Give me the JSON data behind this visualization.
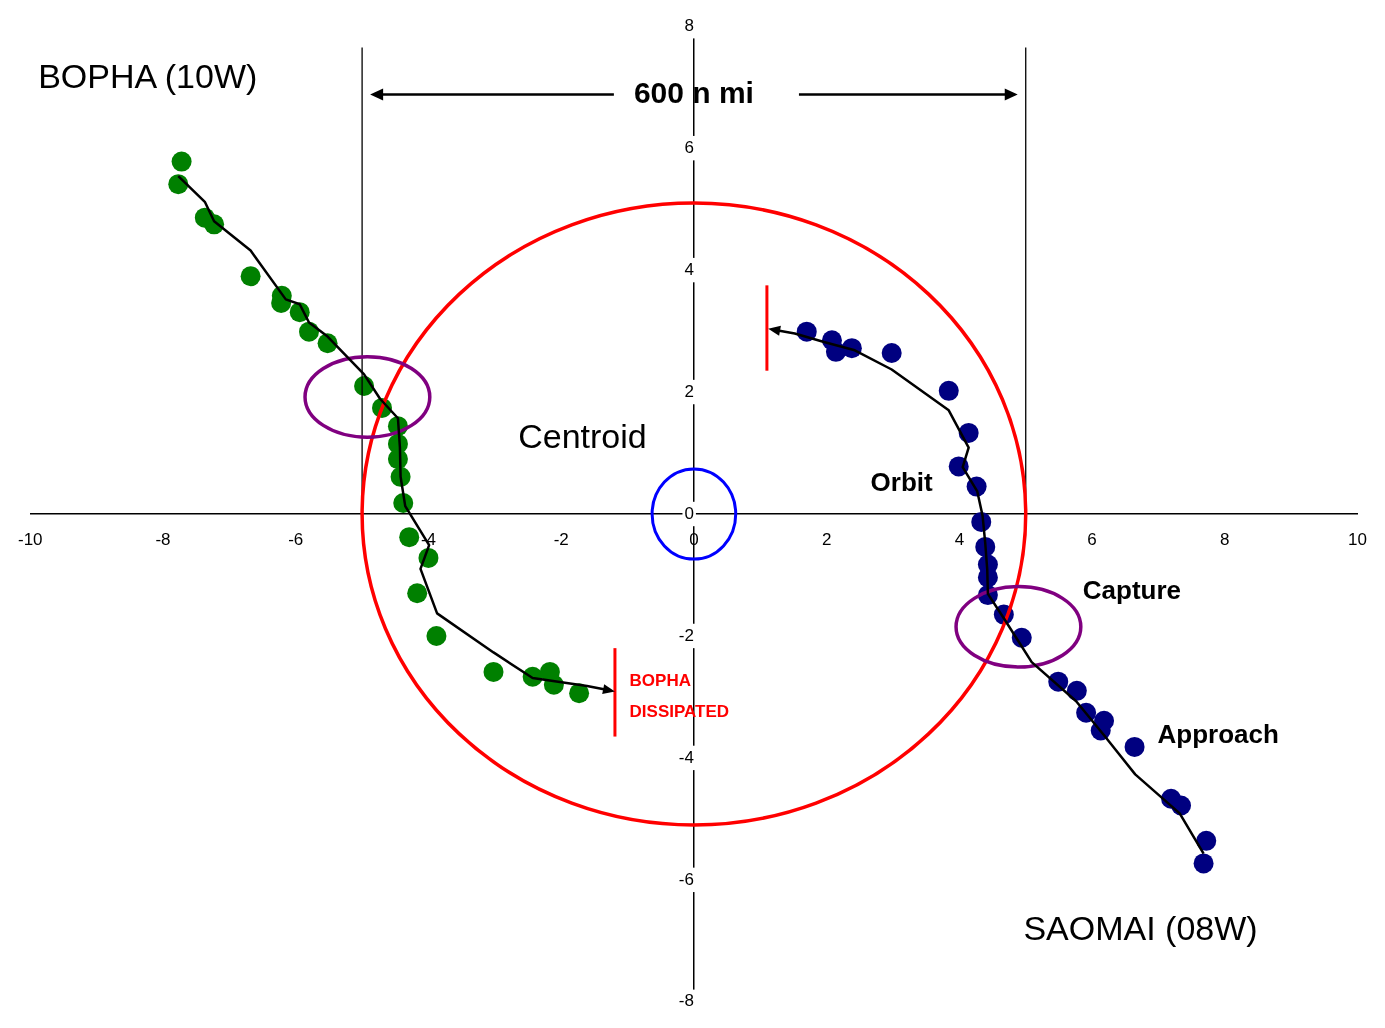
{
  "chart_data": {
    "type": "scatter",
    "xlim": [
      -10,
      10
    ],
    "ylim": [
      -8,
      8
    ],
    "xticks": [
      -10,
      -8,
      -6,
      -4,
      -2,
      0,
      2,
      4,
      6,
      8,
      10
    ],
    "yticks": [
      -8,
      -6,
      -4,
      -2,
      0,
      2,
      4,
      6,
      8
    ],
    "grid": false,
    "legend": false,
    "marker": "circle",
    "series": [
      {
        "color": "#008000",
        "x": [
          -7.72,
          -7.77,
          -7.37,
          -7.23,
          -6.68,
          -6.21,
          -6.22,
          -5.94,
          -5.8,
          -5.52,
          -4.97,
          -4.7,
          -4.46,
          -4.46,
          -4.46,
          -4.42,
          -4.38,
          -4.29,
          -4,
          -4.17,
          -3.88,
          -3.02,
          -2.43,
          -2.17,
          -2.11,
          -1.73
        ],
        "values": [
          5.78,
          5.41,
          4.86,
          4.75,
          3.9,
          3.58,
          3.46,
          3.31,
          2.99,
          2.8,
          2.1,
          1.74,
          1.44,
          1.15,
          0.9,
          0.61,
          0.18,
          -0.38,
          -0.72,
          -1.3,
          -2,
          -2.59,
          -2.67,
          -2.59,
          -2.8,
          -2.94
        ]
      },
      {
        "color": "#000080",
        "x": [
          1.7,
          2.08,
          2.14,
          2.38,
          2.98,
          3.84,
          4.14,
          3.99,
          4.26,
          4.33,
          4.39,
          4.43,
          4.43,
          4.43,
          4.67,
          4.94,
          5.49,
          5.77,
          5.91,
          6.18,
          6.13,
          6.64,
          7.19,
          7.34,
          7.72,
          7.68
        ],
        "values": [
          2.99,
          2.85,
          2.66,
          2.72,
          2.64,
          2.02,
          1.33,
          0.78,
          0.45,
          -0.13,
          -0.54,
          -0.83,
          -1.04,
          -1.33,
          -1.65,
          -2.03,
          -2.75,
          -2.9,
          -3.26,
          -3.39,
          -3.55,
          -3.82,
          -4.67,
          -4.78,
          -5.36,
          -5.73
        ]
      }
    ],
    "ref_lines": [
      {
        "axis": "x",
        "value": -5,
        "color": "#000000"
      },
      {
        "axis": "x",
        "value": 5,
        "color": "#000000"
      }
    ],
    "annotations": [
      "600 n mi",
      "BOPHA (10W)",
      "SAOMAI (08W)",
      "Centroid",
      "Orbit",
      "Capture",
      "Approach",
      "BOPHA\nDISSIPATED"
    ]
  }
}
